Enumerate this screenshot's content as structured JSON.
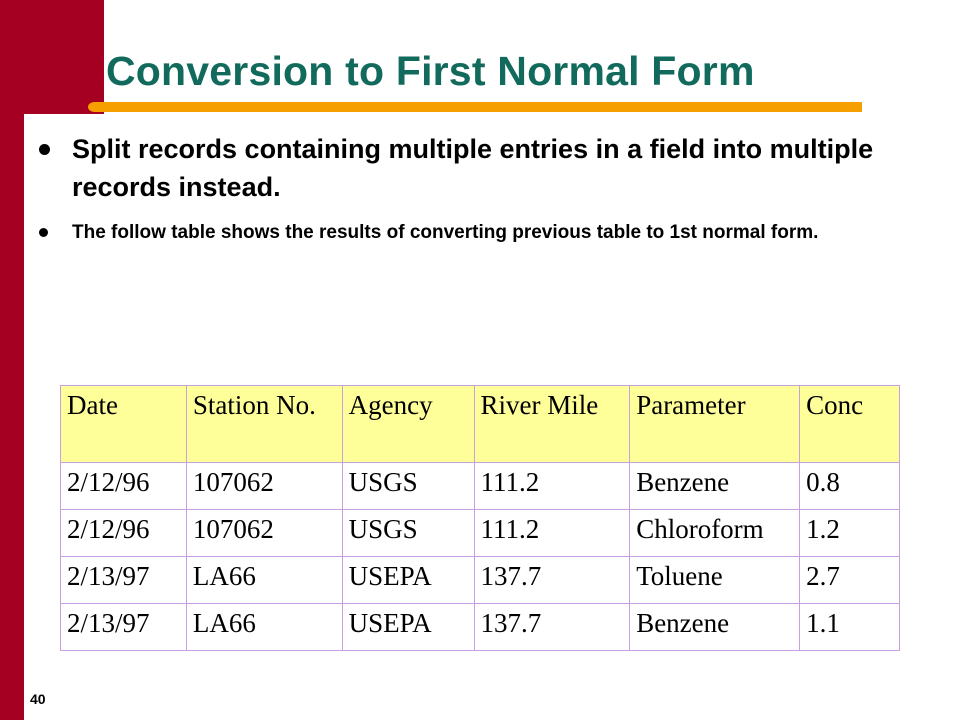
{
  "slide": {
    "title": "Conversion to First Normal Form",
    "bullets": [
      "Split records containing multiple entries in a field into multiple records instead.",
      "The follow table shows the results of converting previous table to 1st normal form."
    ],
    "page_number": "40"
  },
  "table": {
    "headers": [
      "Date",
      "Station No.",
      "Agency",
      "River Mile",
      "Parameter",
      "Conc"
    ],
    "rows": [
      [
        "2/12/96",
        "107062",
        "USGS",
        "111.2",
        "Benzene",
        "0.8"
      ],
      [
        "2/12/96",
        "107062",
        "USGS",
        "111.2",
        "Chloroform",
        "1.2"
      ],
      [
        "2/13/97",
        "LA66",
        "USEPA",
        "137.7",
        "Toluene",
        "2.7"
      ],
      [
        "2/13/97",
        "LA66",
        "USEPA",
        "137.7",
        "Benzene",
        "1.1"
      ]
    ]
  },
  "colors": {
    "accent_bar": "#a50021",
    "title_underline": "#f5a000",
    "title_text": "#116a5c",
    "header_fill": "#ffff99",
    "table_border": "#c8a0e0"
  }
}
